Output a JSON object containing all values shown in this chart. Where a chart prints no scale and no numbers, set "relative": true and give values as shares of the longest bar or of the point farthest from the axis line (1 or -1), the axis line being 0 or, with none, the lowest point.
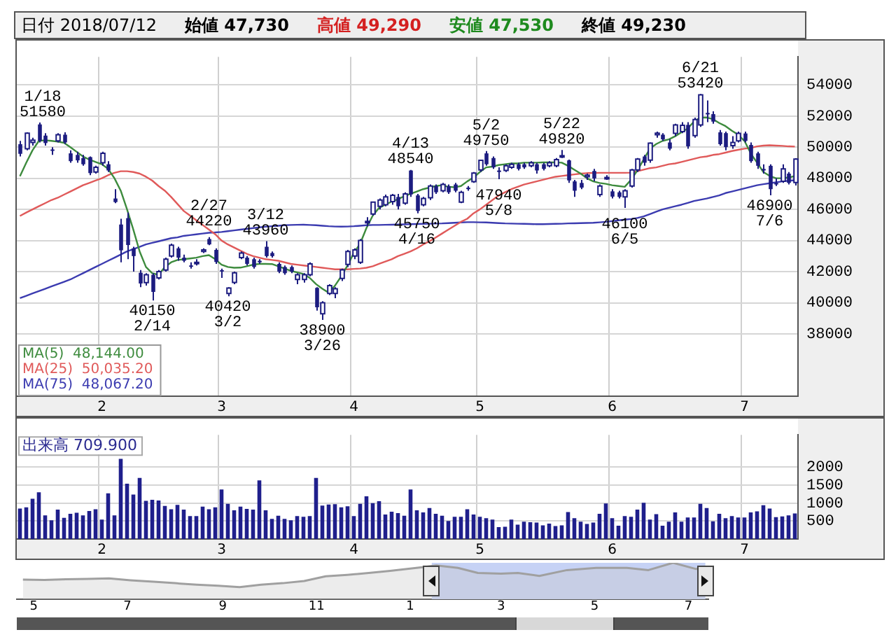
{
  "chart_data": [
    {
      "type": "candlestick",
      "title": "日付 2018/07/12",
      "annotations": [
        "始値 47,730",
        "高値 49,290",
        "安値 47,530",
        "終値 49,230",
        {
          "text": "1/18\n51580",
          "y": 51580
        },
        {
          "text": "40150\n2/14",
          "y": 40150
        },
        {
          "text": "2/27\n44220",
          "y": 44220
        },
        {
          "text": "40420\n3/2",
          "y": 40420
        },
        {
          "text": "3/12\n43960",
          "y": 43960
        },
        {
          "text": "38900\n3/26",
          "y": 38900
        },
        {
          "text": "4/13\n48540",
          "y": 48540
        },
        {
          "text": "45750\n4/16",
          "y": 45750
        },
        {
          "text": "5/2\n49750",
          "y": 49750
        },
        {
          "text": "47940\n5/8",
          "y": 47940
        },
        {
          "text": "5/22\n49820",
          "y": 49820
        },
        {
          "text": "46100\n6/5",
          "y": 46100
        },
        {
          "text": "6/21\n53420",
          "y": 53420
        },
        {
          "text": "46900\n7/6",
          "y": 46900
        }
      ],
      "categories": [
        null,
        null,
        null,
        null,
        null,
        null,
        null,
        null,
        null,
        null,
        null,
        null,
        null,
        "2",
        null,
        null,
        null,
        null,
        null,
        null,
        null,
        null,
        null,
        null,
        null,
        null,
        null,
        null,
        null,
        null,
        null,
        null,
        "3",
        null,
        null,
        null,
        null,
        null,
        null,
        null,
        null,
        null,
        null,
        null,
        null,
        null,
        null,
        null,
        null,
        null,
        null,
        null,
        null,
        "4",
        null,
        null,
        null,
        null,
        null,
        null,
        null,
        null,
        null,
        null,
        null,
        null,
        null,
        null,
        null,
        null,
        null,
        null,
        null,
        "5",
        null,
        null,
        null,
        null,
        null,
        null,
        null,
        null,
        null,
        null,
        null,
        null,
        null,
        null,
        null,
        null,
        null,
        null,
        null,
        null,
        "6",
        null,
        null,
        null,
        null,
        null,
        null,
        null,
        null,
        null,
        null,
        null,
        null,
        null,
        null,
        null,
        null,
        null,
        null,
        null,
        null,
        "7",
        null,
        null,
        null,
        null,
        null,
        null,
        null,
        null
      ],
      "ohlc": [
        [
          50190,
          50400,
          49400,
          49570
        ],
        [
          49900,
          50950,
          49800,
          50900
        ],
        [
          50300,
          50600,
          50100,
          50450
        ],
        [
          51460,
          51580,
          50300,
          50400
        ],
        [
          50740,
          50900,
          50100,
          50260
        ],
        [
          49850,
          50000,
          49500,
          49800
        ],
        [
          50400,
          50900,
          50300,
          50800
        ],
        [
          50800,
          50950,
          50200,
          50300
        ],
        [
          49600,
          49800,
          49000,
          49100
        ],
        [
          49500,
          49700,
          49000,
          49150
        ],
        [
          49300,
          49500,
          48800,
          48900
        ],
        [
          49360,
          49400,
          48200,
          48330
        ],
        [
          48400,
          48800,
          48300,
          48700
        ],
        [
          49000,
          49700,
          48800,
          49600
        ],
        [
          48900,
          49100,
          48400,
          48500
        ],
        [
          46700,
          47300,
          46400,
          46470
        ],
        [
          45030,
          45400,
          42600,
          43370
        ],
        [
          45440,
          45800,
          42800,
          43710
        ],
        [
          43500,
          43600,
          42000,
          43000
        ],
        [
          41930,
          42100,
          41000,
          41240
        ],
        [
          41300,
          41900,
          41100,
          41800
        ],
        [
          41800,
          41900,
          40150,
          40700
        ],
        [
          41600,
          42100,
          41500,
          42000
        ],
        [
          42100,
          42900,
          42000,
          42800
        ],
        [
          43000,
          43800,
          42900,
          43700
        ],
        [
          43500,
          43600,
          42700,
          42900
        ],
        [
          42900,
          43100,
          42600,
          42700
        ],
        [
          42400,
          42600,
          42200,
          42350
        ],
        [
          42550,
          42800,
          42400,
          42600
        ],
        [
          43300,
          43500,
          43200,
          43400
        ],
        [
          44100,
          44220,
          43700,
          43750
        ],
        [
          43400,
          43500,
          42500,
          42620
        ],
        [
          42100,
          42200,
          41600,
          42050
        ],
        [
          40600,
          41000,
          40420,
          40950
        ],
        [
          41310,
          42000,
          41200,
          41930
        ],
        [
          42900,
          43300,
          42800,
          43200
        ],
        [
          42900,
          43000,
          42400,
          42500
        ],
        [
          42800,
          42900,
          42200,
          42300
        ],
        [
          42700,
          42800,
          42500,
          42600
        ],
        [
          43600,
          43960,
          42900,
          43000
        ],
        [
          43200,
          43300,
          42900,
          43000
        ],
        [
          42500,
          42600,
          41900,
          42000
        ],
        [
          42300,
          42400,
          41800,
          41900
        ],
        [
          42300,
          42400,
          41900,
          42000
        ],
        [
          41500,
          41900,
          41200,
          41800
        ],
        [
          41500,
          41900,
          41300,
          41800
        ],
        [
          41800,
          42600,
          41700,
          42500
        ],
        [
          40960,
          41000,
          39500,
          39710
        ],
        [
          39300,
          40100,
          38900,
          40000
        ],
        [
          40600,
          41200,
          40500,
          41100
        ],
        [
          40600,
          41000,
          40300,
          40900
        ],
        [
          41570,
          42200,
          41400,
          42120
        ],
        [
          42470,
          43400,
          42300,
          43300
        ],
        [
          43000,
          43500,
          42800,
          43400
        ],
        [
          42600,
          44100,
          42500,
          44000
        ],
        [
          45200,
          45500,
          44900,
          45230
        ],
        [
          45700,
          46500,
          45600,
          46470
        ],
        [
          46200,
          46700,
          46000,
          46600
        ],
        [
          46300,
          46950,
          46200,
          46800
        ],
        [
          46500,
          47000,
          46300,
          46900
        ],
        [
          46800,
          47000,
          46000,
          46200
        ],
        [
          46400,
          47100,
          46300,
          47000
        ],
        [
          48500,
          48540,
          46800,
          46960
        ],
        [
          46900,
          47000,
          45750,
          45900
        ],
        [
          46300,
          46800,
          46200,
          46700
        ],
        [
          46750,
          47600,
          46600,
          47500
        ],
        [
          47500,
          47600,
          47000,
          47100
        ],
        [
          47200,
          47700,
          47100,
          47600
        ],
        [
          47500,
          47600,
          47000,
          47100
        ],
        [
          47600,
          47700,
          47100,
          47200
        ],
        [
          46470,
          47200,
          46400,
          47100
        ],
        [
          47400,
          47500,
          47200,
          47300
        ],
        [
          47780,
          48400,
          47700,
          48330
        ],
        [
          48540,
          49200,
          48400,
          49150
        ],
        [
          49600,
          49750,
          48800,
          48900
        ],
        [
          49300,
          49400,
          48600,
          48700
        ],
        [
          48500,
          48700,
          47940,
          48400
        ],
        [
          48500,
          48900,
          48400,
          48800
        ],
        [
          48700,
          49000,
          48600,
          48900
        ],
        [
          48900,
          49000,
          48500,
          48600
        ],
        [
          48900,
          49000,
          48600,
          48700
        ],
        [
          48800,
          49100,
          48700,
          49000
        ],
        [
          48900,
          49000,
          48300,
          48500
        ],
        [
          48900,
          49000,
          48500,
          48600
        ],
        [
          48800,
          49100,
          48700,
          49000
        ],
        [
          48800,
          49300,
          48700,
          49200
        ],
        [
          49400,
          49820,
          49300,
          49450
        ],
        [
          49150,
          49200,
          47700,
          47860
        ],
        [
          47800,
          47900,
          46800,
          47200
        ],
        [
          47700,
          47900,
          47300,
          47400
        ],
        [
          48100,
          48300,
          47900,
          48200
        ],
        [
          48470,
          48600,
          47800,
          47990
        ],
        [
          46950,
          47600,
          46800,
          47500
        ],
        [
          48000,
          48200,
          47900,
          48050
        ],
        [
          47160,
          47300,
          46700,
          46820
        ],
        [
          47100,
          47200,
          46700,
          46800
        ],
        [
          46800,
          47300,
          46100,
          47200
        ],
        [
          47500,
          48600,
          47400,
          48540
        ],
        [
          48540,
          49300,
          48400,
          49230
        ],
        [
          49400,
          49500,
          48800,
          49000
        ],
        [
          49160,
          50300,
          49000,
          50260
        ],
        [
          50800,
          51000,
          50600,
          50900
        ],
        [
          50800,
          50900,
          50400,
          50500
        ],
        [
          50300,
          50500,
          49800,
          49900
        ],
        [
          50880,
          51500,
          50700,
          51430
        ],
        [
          51000,
          51600,
          50900,
          51400
        ],
        [
          51430,
          51600,
          49900,
          50050
        ],
        [
          50740,
          51900,
          50600,
          51770
        ],
        [
          51430,
          53420,
          51300,
          53360
        ],
        [
          52200,
          53000,
          51600,
          52100
        ],
        [
          52120,
          52300,
          51500,
          51640
        ],
        [
          50950,
          51100,
          50100,
          50190
        ],
        [
          50900,
          51000,
          49800,
          50000
        ],
        [
          50100,
          50700,
          49900,
          50300
        ],
        [
          50400,
          51000,
          50300,
          50880
        ],
        [
          50880,
          51000,
          50300,
          50400
        ],
        [
          50140,
          50300,
          49000,
          49100
        ],
        [
          49600,
          49700,
          48600,
          48800
        ],
        [
          48600,
          48900,
          48300,
          48500
        ],
        [
          48800,
          48900,
          46900,
          47300
        ],
        [
          47700,
          48000,
          47500,
          47600
        ],
        [
          47800,
          48900,
          47700,
          48600
        ],
        [
          48300,
          48400,
          47600,
          47700
        ],
        [
          47730,
          49290,
          47530,
          49230
        ]
      ],
      "series": [
        {
          "name": "MA(5)  48,144.00",
          "type": "line",
          "color": "#3d8b3d",
          "values": [
            48130,
            49000,
            49800,
            50400,
            50440,
            50400,
            50350,
            50280,
            50000,
            49700,
            49400,
            49200,
            49050,
            48900,
            48600,
            48000,
            47200,
            46000,
            44700,
            43300,
            42300,
            41900,
            41800,
            42300,
            42600,
            42750,
            42800,
            42850,
            42900,
            43000,
            43060,
            42800,
            42450,
            42300,
            42250,
            42260,
            42350,
            42450,
            42500,
            42500,
            42490,
            42350,
            42200,
            42050,
            41950,
            41850,
            41600,
            41200,
            40900,
            40650,
            41100,
            41700,
            42400,
            43200,
            43800,
            44800,
            45600,
            46100,
            46300,
            46500,
            46650,
            46850,
            47000,
            47150,
            47300,
            47400,
            47500,
            47550,
            47450,
            47420,
            47500,
            47800,
            48050,
            48400,
            48700,
            48750,
            48850,
            48900,
            48950,
            48950,
            49000,
            49000,
            49000,
            49020,
            49020,
            49020,
            49000,
            48800,
            48550,
            48300,
            48000,
            47800,
            47700,
            47640,
            47550,
            47500,
            47450,
            47900,
            48500,
            49200,
            49900,
            50200,
            50400,
            50500,
            50700,
            50950,
            51200,
            51650,
            51900,
            51900,
            51800,
            51550,
            51350,
            51050,
            50800,
            50400,
            49600,
            49000,
            48400,
            48150,
            48000,
            48000,
            48050,
            48144
          ]
        },
        {
          "name": "MA(25)  50,035.20",
          "type": "line",
          "color": "#e05a5a",
          "values": [
            45580,
            45800,
            46000,
            46200,
            46400,
            46600,
            46750,
            46950,
            47150,
            47350,
            47550,
            47700,
            47850,
            48000,
            48200,
            48350,
            48450,
            48450,
            48400,
            48300,
            48100,
            47850,
            47500,
            47200,
            46800,
            46350,
            45900,
            45600,
            45300,
            45000,
            44700,
            44400,
            44000,
            43750,
            43550,
            43350,
            43150,
            43000,
            42900,
            42800,
            42750,
            42700,
            42600,
            42500,
            42450,
            42400,
            42350,
            42300,
            42250,
            42200,
            42150,
            42150,
            42150,
            42180,
            42200,
            42250,
            42350,
            42500,
            42650,
            42800,
            43000,
            43150,
            43300,
            43500,
            43750,
            43950,
            44200,
            44450,
            44700,
            44950,
            45200,
            45400,
            45750,
            46000,
            46300,
            46600,
            46900,
            47100,
            47300,
            47450,
            47600,
            47700,
            47800,
            47900,
            48000,
            48100,
            48150,
            48200,
            48250,
            48300,
            48330,
            48340,
            48350,
            48350,
            48350,
            48350,
            48350,
            48360,
            48450,
            48550,
            48650,
            48700,
            48800,
            48900,
            48950,
            49050,
            49150,
            49250,
            49350,
            49400,
            49500,
            49550,
            49650,
            49750,
            49830,
            49900,
            49950,
            50050,
            50100,
            50120,
            50100,
            50080,
            50050,
            50035
          ]
        },
        {
          "name": "MA(75)  48,067.20",
          "type": "line",
          "color": "#3b3bb0",
          "values": [
            40300,
            40450,
            40600,
            40750,
            40900,
            41050,
            41200,
            41350,
            41500,
            41700,
            41900,
            42100,
            42300,
            42500,
            42700,
            42900,
            43100,
            43300,
            43450,
            43600,
            43750,
            43850,
            43950,
            44050,
            44150,
            44200,
            44300,
            44350,
            44400,
            44450,
            44500,
            44520,
            44550,
            44600,
            44650,
            44700,
            44750,
            44800,
            44850,
            44890,
            44920,
            44950,
            44980,
            45000,
            45010,
            45020,
            45000,
            44980,
            44950,
            44920,
            44900,
            44890,
            44900,
            44920,
            44950,
            44980,
            45000,
            45000,
            45010,
            45020,
            45030,
            45040,
            45050,
            45060,
            45070,
            45080,
            45090,
            45100,
            45120,
            45140,
            45160,
            45180,
            45180,
            45170,
            45160,
            45140,
            45120,
            45100,
            45090,
            45080,
            45070,
            45060,
            45050,
            45050,
            45060,
            45070,
            45080,
            45100,
            45110,
            45120,
            45130,
            45140,
            45170,
            45200,
            45250,
            45300,
            45340,
            45380,
            45450,
            45550,
            45700,
            45850,
            46000,
            46100,
            46200,
            46300,
            46420,
            46540,
            46620,
            46700,
            46800,
            46900,
            47050,
            47150,
            47250,
            47350,
            47450,
            47550,
            47620,
            47680,
            47740,
            47800,
            47840,
            47870
          ]
        }
      ],
      "ylim": [
        34000,
        55800
      ],
      "yticks": [
        38000,
        40000,
        42000,
        44000,
        46000,
        48000,
        50000,
        52000,
        54000
      ],
      "grid": true,
      "legend": "bottom left"
    },
    {
      "type": "bar",
      "title": "出来高 709.900",
      "categories": [
        null,
        null,
        null,
        null,
        null,
        null,
        null,
        null,
        null,
        null,
        null,
        null,
        null,
        "2",
        null,
        null,
        null,
        null,
        null,
        null,
        null,
        null,
        null,
        null,
        null,
        null,
        null,
        null,
        null,
        null,
        null,
        null,
        "3",
        null,
        null,
        null,
        null,
        null,
        null,
        null,
        null,
        null,
        null,
        null,
        null,
        null,
        null,
        null,
        null,
        null,
        null,
        null,
        null,
        "4",
        null,
        null,
        null,
        null,
        null,
        null,
        null,
        null,
        null,
        null,
        null,
        null,
        null,
        null,
        null,
        null,
        null,
        null,
        null,
        "5",
        null,
        null,
        null,
        null,
        null,
        null,
        null,
        null,
        null,
        null,
        null,
        null,
        null,
        null,
        null,
        null,
        null,
        null,
        null,
        null,
        "6",
        null,
        null,
        null,
        null,
        null,
        null,
        null,
        null,
        null,
        null,
        null,
        null,
        null,
        null,
        null,
        null,
        null,
        null,
        null,
        null,
        "7",
        null,
        null,
        null,
        null,
        null,
        null,
        null,
        null
      ],
      "values": [
        850,
        880,
        1120,
        1300,
        660,
        520,
        820,
        590,
        700,
        730,
        660,
        780,
        830,
        540,
        1270,
        660,
        2230,
        1540,
        1240,
        1700,
        1060,
        1090,
        1070,
        920,
        830,
        950,
        820,
        640,
        640,
        900,
        830,
        880,
        1380,
        980,
        800,
        900,
        840,
        820,
        1630,
        800,
        560,
        650,
        560,
        520,
        640,
        620,
        640,
        1700,
        930,
        960,
        970,
        880,
        910,
        640,
        980,
        1190,
        1000,
        1050,
        680,
        760,
        720,
        650,
        1380,
        800,
        740,
        860,
        700,
        650,
        500,
        620,
        620,
        830,
        680,
        620,
        580,
        540,
        330,
        340,
        540,
        400,
        480,
        470,
        460,
        380,
        430,
        360,
        380,
        750,
        580,
        480,
        420,
        460,
        700,
        990,
        580,
        370,
        640,
        620,
        820,
        1010,
        540,
        690,
        370,
        480,
        740,
        480,
        600,
        600,
        980,
        860,
        490,
        700,
        580,
        640,
        600,
        600,
        740,
        770,
        940,
        850,
        610,
        630,
        660,
        709.9
      ],
      "color": "#1f1f8c",
      "ylim": [
        0,
        2900
      ],
      "yticks": [
        500,
        1000,
        1500,
        2000
      ],
      "grid": true
    },
    {
      "type": "area",
      "relative": true,
      "x": [
        "2017-04-24",
        "2017-05-08",
        "2017-05-22",
        "2017-06-05",
        "2017-06-19",
        "2017-07-03",
        "2017-07-18",
        "2017-08-01",
        "2017-08-15",
        "2017-08-29",
        "2017-09-12",
        "2017-09-26",
        "2017-10-10",
        "2017-10-24",
        "2017-11-07",
        "2017-11-21",
        "2017-12-05",
        "2017-12-19",
        "2018-01-09",
        "2018-01-18",
        "2018-02-01",
        "2018-02-14",
        "2018-03-01",
        "2018-03-12",
        "2018-03-26",
        "2018-04-13",
        "2018-05-02",
        "2018-05-22",
        "2018-06-05",
        "2018-06-21",
        "2018-07-06",
        "2018-07-12"
      ],
      "values": [
        0.54,
        0.53,
        0.55,
        0.56,
        0.57,
        0.52,
        0.48,
        0.44,
        0.4,
        0.37,
        0.33,
        0.4,
        0.44,
        0.5,
        0.63,
        0.67,
        0.72,
        0.78,
        0.88,
        0.93,
        0.86,
        0.72,
        0.7,
        0.72,
        0.64,
        0.8,
        0.86,
        0.86,
        0.8,
        1,
        0.83,
        0.86
      ],
      "color": "#a0a0a0",
      "xlim": [
        "2017-04-20",
        "2018-07-14"
      ],
      "xticks": [
        {
          "value": "2017-05-01",
          "label": "5"
        },
        {
          "value": "2017-07-01",
          "label": "7"
        },
        {
          "value": "2017-09-01",
          "label": "9"
        },
        {
          "value": "2017-11-01",
          "label": "11"
        },
        {
          "value": "2018-01-01",
          "label": "1"
        },
        {
          "value": "2018-03-01",
          "label": "3"
        },
        {
          "value": "2018-05-01",
          "label": "5"
        },
        {
          "value": "2018-07-01",
          "label": "7"
        }
      ],
      "bands": [
        {
          "axis": "x",
          "from": "2018-01-15",
          "to": "2018-07-12",
          "color": "#c6d2f5"
        }
      ]
    }
  ]
}
